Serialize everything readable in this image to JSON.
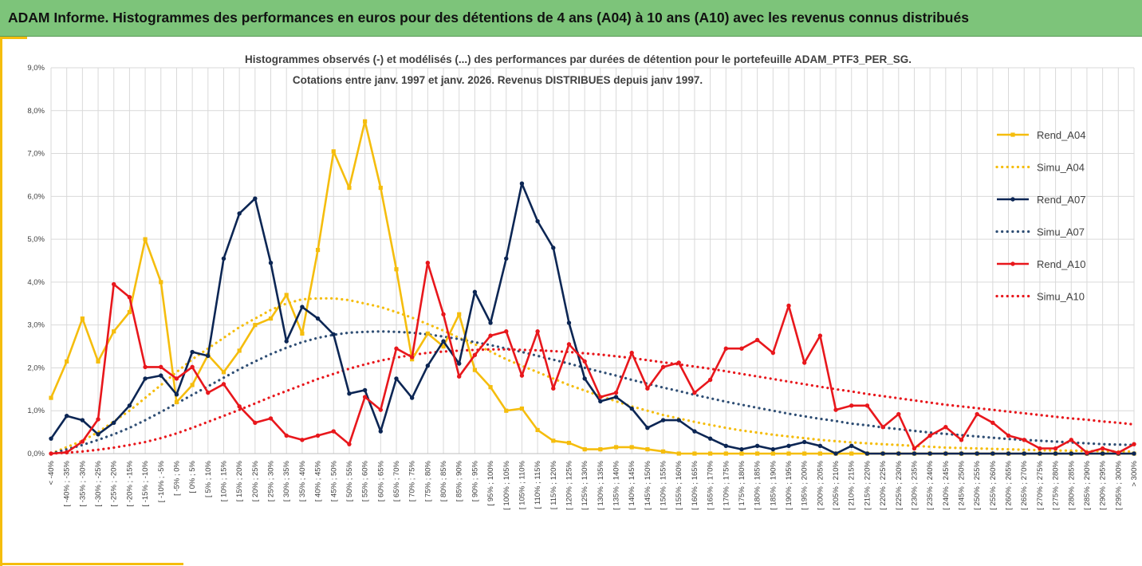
{
  "banner": {
    "title": "ADAM Informe. Histogrammes des performances en euros pour des détentions de 4 ans (A04) à 10 ans (A10) avec les revenus connus distribués"
  },
  "chart_data": {
    "type": "line",
    "title": "Histogrammes observés (-) et modélisés (...) des performances par durées de détention pour le portefeuille ADAM_PTF3_PER_SG.",
    "subtitle": "Cotations entre janv. 1997 et janv. 2026. Revenus DISTRIBUES depuis janv 1997.",
    "ylim": [
      0,
      9
    ],
    "yticks": [
      "0,0%",
      "1,0%",
      "2,0%",
      "3,0%",
      "4,0%",
      "5,0%",
      "6,0%",
      "7,0%",
      "8,0%",
      "9,0%"
    ],
    "grid": true,
    "legend_position": "right",
    "categories": [
      "< -40%",
      "[ -40% ; -35%",
      "[ -35% ; -30%",
      "[ -30% ; -25%",
      "[ -25% ; -20%",
      "[ -20% ; -15%",
      "[ -15% ; -10%",
      "[ -10% ; -5%",
      "[ -5% ; 0%",
      "[ 0% ; 5%",
      "[ 5% ; 10%",
      "[ 10% ; 15%",
      "[ 15% ; 20%",
      "[ 20% ; 25%",
      "[ 25% ; 30%",
      "[ 30% ; 35%",
      "[ 35% ; 40%",
      "[ 40% ; 45%",
      "[ 45% ; 50%",
      "[ 50% ; 55%",
      "[ 55% ; 60%",
      "[ 60% ; 65%",
      "[ 65% ; 70%",
      "[ 70% ; 75%",
      "[ 75% ; 80%",
      "[ 80% ; 85%",
      "[ 85% ; 90%",
      "[ 90% ; 95%",
      "[ 95% ; 100%",
      "[ 100% ; 105%",
      "[ 105% ; 110%",
      "[ 110% ; 115%",
      "[ 115% ; 120%",
      "[ 120% ; 125%",
      "[ 125% ; 130%",
      "[ 130% ; 135%",
      "[ 135% ; 140%",
      "[ 140% ; 145%",
      "[ 145% ; 150%",
      "[ 150% ; 155%",
      "[ 155% ; 160%",
      "[ 160% ; 165%",
      "[ 165% ; 170%",
      "[ 170% ; 175%",
      "[ 175% ; 180%",
      "[ 180% ; 185%",
      "[ 185% ; 190%",
      "[ 190% ; 195%",
      "[ 195% ; 200%",
      "[ 200% ; 205%",
      "[ 205% ; 210%",
      "[ 210% ; 215%",
      "[ 215% ; 220%",
      "[ 220% ; 225%",
      "[ 225% ; 230%",
      "[ 230% ; 235%",
      "[ 235% ; 240%",
      "[ 240% ; 245%",
      "[ 245% ; 250%",
      "[ 250% ; 255%",
      "[ 255% ; 260%",
      "[ 260% ; 265%",
      "[ 265% ; 270%",
      "[ 270% ; 275%",
      "[ 275% ; 280%",
      "[ 280% ; 285%",
      "[ 285% ; 290%",
      "[ 290% ; 295%",
      "[ 295% ; 300%",
      "> 300%"
    ],
    "series": [
      {
        "name": "Rend_A04",
        "style": "solid",
        "color": "#f5bd0d",
        "values": [
          1.3,
          2.15,
          3.15,
          2.15,
          2.85,
          3.3,
          5.0,
          4.0,
          1.2,
          1.6,
          2.3,
          1.9,
          2.4,
          3.0,
          3.15,
          3.7,
          2.8,
          4.75,
          7.05,
          6.2,
          7.75,
          6.2,
          4.3,
          2.2,
          2.8,
          2.5,
          3.25,
          1.95,
          1.55,
          1.0,
          1.05,
          0.55,
          0.3,
          0.25,
          0.1,
          0.1,
          0.15,
          0.15,
          0.1,
          0.05,
          0.0,
          0.0,
          0.0,
          0.0,
          0.0,
          0.0,
          0.0,
          0.0,
          0.0,
          0.0,
          0.0,
          0.0,
          0.0,
          0.0,
          0.0,
          0.0,
          0.0,
          0.0,
          0.0,
          0.0,
          0.0,
          0.0,
          0.0,
          0.0,
          0.0,
          0.0,
          0.0,
          0.0,
          0.0,
          0.0
        ]
      },
      {
        "name": "Simu_A04",
        "style": "dotted",
        "color": "#f5bd0d",
        "values": [
          0.0,
          0.15,
          0.3,
          0.5,
          0.75,
          1.0,
          1.3,
          1.6,
          1.9,
          2.2,
          2.45,
          2.7,
          2.95,
          3.15,
          3.35,
          3.5,
          3.6,
          3.62,
          3.62,
          3.58,
          3.5,
          3.42,
          3.3,
          3.17,
          3.02,
          2.87,
          2.7,
          2.55,
          2.38,
          2.2,
          2.05,
          1.9,
          1.75,
          1.6,
          1.47,
          1.34,
          1.22,
          1.1,
          1.0,
          0.9,
          0.82,
          0.74,
          0.67,
          0.6,
          0.54,
          0.49,
          0.44,
          0.4,
          0.36,
          0.32,
          0.29,
          0.26,
          0.24,
          0.22,
          0.2,
          0.18,
          0.16,
          0.14,
          0.13,
          0.12,
          0.11,
          0.1,
          0.09,
          0.08,
          0.07,
          0.07,
          0.06,
          0.06,
          0.05,
          0.05
        ]
      },
      {
        "name": "Rend_A07",
        "style": "solid",
        "color": "#0c2654",
        "values": [
          0.35,
          0.88,
          0.78,
          0.45,
          0.72,
          1.12,
          1.75,
          1.82,
          1.38,
          2.37,
          2.28,
          4.55,
          5.6,
          5.95,
          4.45,
          2.62,
          3.42,
          3.15,
          2.78,
          1.4,
          1.48,
          0.52,
          1.75,
          1.3,
          2.05,
          2.62,
          2.1,
          3.77,
          3.05,
          4.55,
          6.3,
          5.42,
          4.8,
          3.05,
          1.75,
          1.22,
          1.32,
          1.05,
          0.6,
          0.78,
          0.78,
          0.52,
          0.35,
          0.18,
          0.1,
          0.18,
          0.1,
          0.18,
          0.27,
          0.18,
          0.0,
          0.18,
          0.0,
          0.0,
          0.0,
          0.0,
          0.0,
          0.0,
          0.0,
          0.0,
          0.0,
          0.0,
          0.0,
          0.0,
          0.0,
          0.0,
          0.0,
          0.0,
          0.0,
          0.0
        ]
      },
      {
        "name": "Simu_A07",
        "style": "dotted",
        "color": "#2f4e74",
        "values": [
          0.0,
          0.1,
          0.2,
          0.32,
          0.45,
          0.6,
          0.78,
          0.97,
          1.17,
          1.37,
          1.57,
          1.77,
          1.97,
          2.15,
          2.32,
          2.47,
          2.6,
          2.7,
          2.77,
          2.82,
          2.84,
          2.85,
          2.84,
          2.82,
          2.78,
          2.73,
          2.67,
          2.6,
          2.53,
          2.45,
          2.37,
          2.28,
          2.19,
          2.1,
          2.0,
          1.91,
          1.82,
          1.72,
          1.63,
          1.54,
          1.46,
          1.37,
          1.29,
          1.21,
          1.14,
          1.07,
          1.0,
          0.93,
          0.87,
          0.81,
          0.76,
          0.7,
          0.66,
          0.61,
          0.57,
          0.53,
          0.49,
          0.46,
          0.43,
          0.4,
          0.37,
          0.34,
          0.32,
          0.3,
          0.28,
          0.26,
          0.24,
          0.22,
          0.21,
          0.2
        ]
      },
      {
        "name": "Rend_A10",
        "style": "solid",
        "color": "#e8171c",
        "values": [
          0.0,
          0.03,
          0.28,
          0.8,
          3.95,
          3.65,
          2.02,
          2.02,
          1.75,
          2.02,
          1.42,
          1.62,
          1.1,
          0.72,
          0.82,
          0.42,
          0.32,
          0.42,
          0.52,
          0.22,
          1.32,
          1.02,
          2.45,
          2.25,
          4.45,
          3.25,
          1.8,
          2.3,
          2.75,
          2.85,
          1.82,
          2.85,
          1.52,
          2.55,
          2.15,
          1.32,
          1.42,
          2.35,
          1.52,
          2.02,
          2.12,
          1.42,
          1.72,
          2.45,
          2.45,
          2.65,
          2.35,
          3.45,
          2.12,
          2.75,
          1.02,
          1.12,
          1.12,
          0.62,
          0.92,
          0.12,
          0.42,
          0.62,
          0.32,
          0.92,
          0.72,
          0.42,
          0.32,
          0.12,
          0.12,
          0.32,
          0.02,
          0.12,
          0.02,
          0.22
        ]
      },
      {
        "name": "Simu_A10",
        "style": "dotted",
        "color": "#e8171c",
        "values": [
          0.0,
          0.02,
          0.05,
          0.09,
          0.14,
          0.2,
          0.27,
          0.36,
          0.47,
          0.6,
          0.74,
          0.88,
          1.02,
          1.17,
          1.32,
          1.46,
          1.6,
          1.74,
          1.86,
          1.98,
          2.08,
          2.17,
          2.24,
          2.3,
          2.35,
          2.38,
          2.4,
          2.42,
          2.43,
          2.43,
          2.42,
          2.41,
          2.39,
          2.37,
          2.34,
          2.31,
          2.27,
          2.23,
          2.18,
          2.13,
          2.08,
          2.03,
          1.98,
          1.92,
          1.86,
          1.8,
          1.74,
          1.68,
          1.62,
          1.56,
          1.5,
          1.45,
          1.39,
          1.34,
          1.29,
          1.24,
          1.19,
          1.14,
          1.1,
          1.06,
          1.02,
          0.98,
          0.94,
          0.9,
          0.86,
          0.82,
          0.79,
          0.75,
          0.72,
          0.68
        ]
      }
    ]
  }
}
